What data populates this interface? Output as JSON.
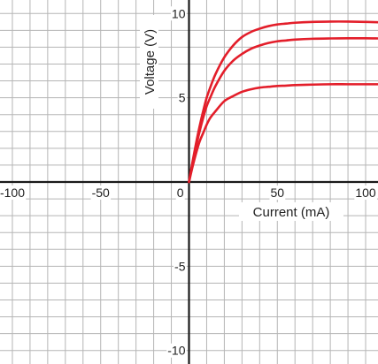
{
  "chart_data": {
    "type": "line",
    "title": "",
    "xlabel": "Current (mA)",
    "ylabel": "Voltage (V)",
    "xlim": [
      -107,
      107
    ],
    "ylim": [
      -10.8,
      10.8
    ],
    "x_ticks": [
      {
        "value": -100,
        "label": "-100"
      },
      {
        "value": -50,
        "label": "-50"
      },
      {
        "value": 50,
        "label": "50"
      },
      {
        "value": 100,
        "label": "100"
      }
    ],
    "y_ticks": [
      {
        "value": 10,
        "label": "10"
      },
      {
        "value": 5,
        "label": "5"
      },
      {
        "value": -5,
        "label": "-5"
      },
      {
        "value": -10,
        "label": "-10"
      }
    ],
    "origin_label": "0",
    "grid": true,
    "grid_step_x": 10,
    "grid_step_y": 1,
    "line_color": "#e31e2a",
    "series": [
      {
        "x": [
          0,
          2,
          4,
          6,
          8,
          10,
          12,
          15,
          20,
          25,
          30,
          35,
          40,
          45,
          50,
          55,
          60,
          70,
          80,
          90,
          100,
          107
        ],
        "y": [
          0,
          1.2,
          2.3,
          3.3,
          4.2,
          5.0,
          5.6,
          6.4,
          7.4,
          8.1,
          8.6,
          8.9,
          9.1,
          9.25,
          9.35,
          9.4,
          9.45,
          9.5,
          9.52,
          9.52,
          9.5,
          9.48
        ]
      },
      {
        "x": [
          0,
          2,
          4,
          6,
          8,
          10,
          12,
          15,
          20,
          25,
          30,
          35,
          40,
          45,
          50,
          55,
          60,
          70,
          80,
          90,
          100,
          107
        ],
        "y": [
          0,
          1.1,
          2.1,
          3.0,
          3.8,
          4.5,
          5.0,
          5.7,
          6.6,
          7.2,
          7.6,
          7.9,
          8.1,
          8.25,
          8.35,
          8.4,
          8.45,
          8.5,
          8.52,
          8.53,
          8.53,
          8.52
        ]
      },
      {
        "x": [
          0,
          2,
          4,
          6,
          8,
          10,
          12,
          15,
          20,
          25,
          30,
          35,
          40,
          45,
          50,
          55,
          60,
          70,
          80,
          90,
          100,
          107
        ],
        "y": [
          0,
          0.9,
          1.7,
          2.4,
          2.9,
          3.4,
          3.8,
          4.2,
          4.8,
          5.1,
          5.35,
          5.5,
          5.6,
          5.65,
          5.7,
          5.72,
          5.75,
          5.78,
          5.8,
          5.8,
          5.8,
          5.8
        ]
      }
    ]
  }
}
